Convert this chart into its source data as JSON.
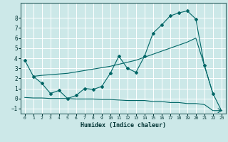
{
  "xlabel": "Humidex (Indice chaleur)",
  "bg_color": "#cce8e8",
  "grid_color": "#ffffff",
  "line_color": "#006666",
  "xlim": [
    -0.5,
    23.5
  ],
  "ylim": [
    -1.5,
    9.5
  ],
  "xticks": [
    0,
    1,
    2,
    3,
    4,
    5,
    6,
    7,
    8,
    9,
    10,
    11,
    12,
    13,
    14,
    15,
    16,
    17,
    18,
    19,
    20,
    21,
    22,
    23
  ],
  "yticks": [
    -1,
    0,
    1,
    2,
    3,
    4,
    5,
    6,
    7,
    8
  ],
  "line1_x": [
    0,
    1,
    2,
    3,
    4,
    5,
    6,
    7,
    8,
    9,
    10,
    11,
    12,
    13,
    14,
    15,
    16,
    17,
    18,
    19,
    20,
    21,
    22
  ],
  "line1_y": [
    3.8,
    2.2,
    1.5,
    0.5,
    0.8,
    0.0,
    0.3,
    1.0,
    0.9,
    1.2,
    2.5,
    4.2,
    3.0,
    2.6,
    4.2,
    6.5,
    7.3,
    8.2,
    8.5,
    8.7,
    7.9,
    3.3,
    0.5
  ],
  "line2_x": [
    1,
    2,
    5,
    10,
    11,
    12,
    13,
    14,
    15,
    16,
    17,
    18,
    19,
    20,
    21,
    22,
    23
  ],
  "line2_y": [
    2.2,
    2.3,
    2.5,
    3.2,
    3.4,
    3.6,
    3.8,
    4.1,
    4.4,
    4.7,
    5.0,
    5.3,
    5.6,
    6.0,
    3.3,
    0.5,
    -1.2
  ],
  "line3_x": [
    0,
    1,
    2,
    3,
    4,
    5,
    6,
    7,
    8,
    9,
    10,
    11,
    12,
    13,
    14,
    15,
    16,
    17,
    18,
    19,
    20,
    21,
    22,
    23
  ],
  "line3_y": [
    0.1,
    0.05,
    0.05,
    0.0,
    0.0,
    0.0,
    -0.05,
    -0.05,
    -0.05,
    -0.1,
    -0.1,
    -0.15,
    -0.2,
    -0.2,
    -0.2,
    -0.3,
    -0.3,
    -0.4,
    -0.4,
    -0.5,
    -0.5,
    -0.6,
    -1.2,
    -1.2
  ]
}
